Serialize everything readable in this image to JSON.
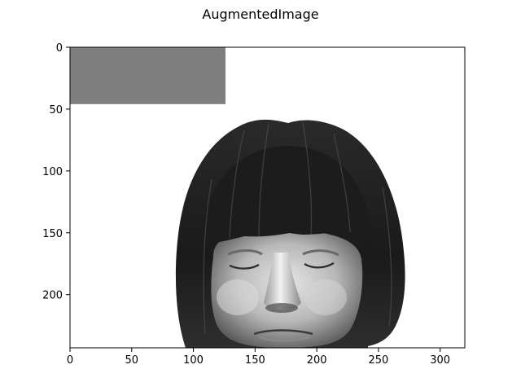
{
  "figure": {
    "title": "AugmentedImage"
  },
  "image_extent": {
    "x": [
      0,
      320
    ],
    "y": [
      0,
      243
    ]
  },
  "masked_region": {
    "x": [
      0,
      126
    ],
    "y": [
      0,
      46
    ],
    "color": "#7f7f7f"
  },
  "axes": {
    "x_ticks": [
      "0",
      "50",
      "100",
      "150",
      "200",
      "250",
      "300"
    ],
    "y_ticks": [
      "0",
      "50",
      "100",
      "150",
      "200"
    ]
  },
  "image": {
    "subject": "grayscale-face-photo",
    "description_icon": "face-icon"
  }
}
